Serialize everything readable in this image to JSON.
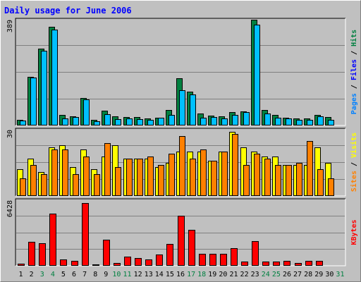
{
  "colors": {
    "background": "#c0c0c0",
    "frame_light": "#ffffff",
    "frame_dark": "#808080",
    "title": "#0000ff",
    "hits": "#008040",
    "files": "#00c0ff",
    "pages": "#0080ff",
    "visits": "#ffff00",
    "sites": "#ff8000",
    "kbytes": "#ff0000",
    "gridline": "#808080",
    "label_dark": "#000000",
    "weekend": "#008040"
  },
  "chart_data": {
    "type": "bar",
    "title": "Daily usage for June 2006",
    "categories": [
      "1",
      "2",
      "3",
      "4",
      "5",
      "6",
      "7",
      "8",
      "9",
      "10",
      "11",
      "12",
      "13",
      "14",
      "15",
      "16",
      "17",
      "18",
      "19",
      "20",
      "21",
      "22",
      "23",
      "24",
      "25",
      "26",
      "27",
      "28",
      "29",
      "30",
      "31"
    ],
    "weekend_days": [
      "3",
      "4",
      "10",
      "11",
      "17",
      "18",
      "24",
      "25",
      "31"
    ],
    "panels": [
      {
        "max_label": "389",
        "ylim": [
          0,
          389
        ],
        "side_labels": [
          {
            "text": "Pages",
            "color": "#0080ff"
          },
          {
            "text": "Files",
            "color": "#0000ff"
          },
          {
            "text": "Hits",
            "color": "#008040"
          }
        ],
        "series": [
          {
            "name": "Hits",
            "color": "#008040",
            "values": [
              21,
              179,
              282,
              363,
              38,
              35,
              101,
              20,
              55,
              33,
              31,
              31,
              27,
              29,
              56,
              173,
              124,
              43,
              37,
              34,
              49,
              53,
              388,
              56,
              38,
              28,
              27,
              26,
              40,
              30
            ]
          },
          {
            "name": "Files",
            "color": "#00c0ff",
            "values": [
              17,
              176,
              276,
              352,
              27,
              31,
              95,
              15,
              42,
              24,
              25,
              23,
              22,
              28,
              40,
              130,
              115,
              29,
              30,
              27,
              40,
              50,
              372,
              45,
              29,
              25,
              22,
              20,
              33,
              21
            ]
          }
        ]
      },
      {
        "max_label": "30",
        "ylim": [
          0,
          30
        ],
        "side_labels": [
          {
            "text": "Sites",
            "color": "#ff8000"
          },
          {
            "text": "Visits",
            "color": "#ffff00"
          }
        ],
        "series": [
          {
            "name": "Visits",
            "color": "#ffff00",
            "values": [
              12,
              17,
              11,
              22,
              23,
              13,
              21,
              12,
              18,
              23,
              17,
              17,
              17,
              13,
              15,
              20,
              20,
              20,
              16,
              20,
              29,
              22,
              20,
              18,
              18,
              14,
              14,
              14,
              22,
              15
            ]
          },
          {
            "name": "Sites",
            "color": "#ff8000",
            "values": [
              8,
              14,
              10,
              21,
              21,
              10,
              18,
              10,
              24,
              13,
              17,
              17,
              18,
              14,
              19,
              27,
              17,
              21,
              16,
              20,
              28,
              14,
              19,
              17,
              14,
              14,
              15,
              25,
              12,
              8
            ]
          }
        ]
      },
      {
        "max_label": "6428",
        "ylim": [
          0,
          6428
        ],
        "side_labels": [
          {
            "text": "KBytes",
            "color": "#ff0000"
          }
        ],
        "series": [
          {
            "name": "KBytes",
            "color": "#ff0000",
            "values": [
              210,
              2320,
              2190,
              5100,
              600,
              470,
              6150,
              120,
              2590,
              310,
              870,
              740,
              630,
              1100,
              2120,
              4900,
              3540,
              1200,
              1160,
              1180,
              1730,
              400,
              2400,
              420,
              420,
              470,
              310,
              470,
              490,
              0
            ]
          }
        ]
      }
    ]
  }
}
